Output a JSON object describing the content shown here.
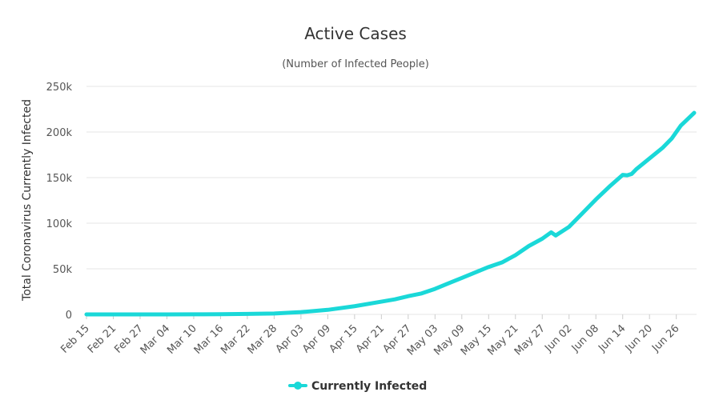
{
  "chart_data": {
    "type": "line",
    "title": "Active Cases",
    "subtitle": "(Number of Infected People)",
    "ylabel": "Total Coronavirus Currently Infected",
    "ylim": [
      0,
      250000
    ],
    "y_ticks": [
      {
        "value": 0,
        "label": "0"
      },
      {
        "value": 50000,
        "label": "50k"
      },
      {
        "value": 100000,
        "label": "100k"
      },
      {
        "value": 150000,
        "label": "150k"
      },
      {
        "value": 200000,
        "label": "200k"
      },
      {
        "value": 250000,
        "label": "250k"
      }
    ],
    "x_ticks": [
      "Feb 15",
      "Feb 21",
      "Feb 27",
      "Mar 04",
      "Mar 10",
      "Mar 16",
      "Mar 22",
      "Mar 28",
      "Apr 03",
      "Apr 09",
      "Apr 15",
      "Apr 21",
      "Apr 27",
      "May 03",
      "May 09",
      "May 15",
      "May 21",
      "May 27",
      "Jun 02",
      "Jun 08",
      "Jun 14",
      "Jun 20",
      "Jun 26"
    ],
    "grid": true,
    "legend_position": "bottom-center",
    "series": [
      {
        "name": "Currently Infected",
        "color": "#1ad8d8",
        "points": [
          {
            "x": "Feb 15",
            "y": 0
          },
          {
            "x": "Feb 21",
            "y": 0
          },
          {
            "x": "Feb 27",
            "y": 0
          },
          {
            "x": "Mar 04",
            "y": 50
          },
          {
            "x": "Mar 10",
            "y": 100
          },
          {
            "x": "Mar 16",
            "y": 200
          },
          {
            "x": "Mar 22",
            "y": 600
          },
          {
            "x": "Mar 28",
            "y": 1000
          },
          {
            "x": "Apr 03",
            "y": 2500
          },
          {
            "x": "Apr 09",
            "y": 5000
          },
          {
            "x": "Apr 15",
            "y": 9000
          },
          {
            "x": "Apr 21",
            "y": 14000
          },
          {
            "x": "Apr 24",
            "y": 16500
          },
          {
            "x": "Apr 27",
            "y": 20000
          },
          {
            "x": "Apr 30",
            "y": 23000
          },
          {
            "x": "May 03",
            "y": 28000
          },
          {
            "x": "May 06",
            "y": 34000
          },
          {
            "x": "May 09",
            "y": 40000
          },
          {
            "x": "May 12",
            "y": 46000
          },
          {
            "x": "May 15",
            "y": 52000
          },
          {
            "x": "May 18",
            "y": 57000
          },
          {
            "x": "May 21",
            "y": 65000
          },
          {
            "x": "May 24",
            "y": 75000
          },
          {
            "x": "May 27",
            "y": 83000
          },
          {
            "x": "May 29",
            "y": 90000
          },
          {
            "x": "May 30",
            "y": 86500
          },
          {
            "x": "Jun 02",
            "y": 96000
          },
          {
            "x": "Jun 05",
            "y": 111000
          },
          {
            "x": "Jun 08",
            "y": 126000
          },
          {
            "x": "Jun 11",
            "y": 140000
          },
          {
            "x": "Jun 14",
            "y": 153000
          },
          {
            "x": "Jun 15",
            "y": 152500
          },
          {
            "x": "Jun 16",
            "y": 154000
          },
          {
            "x": "Jun 17",
            "y": 159000
          },
          {
            "x": "Jun 20",
            "y": 171000
          },
          {
            "x": "Jun 23",
            "y": 183000
          },
          {
            "x": "Jun 25",
            "y": 193000
          },
          {
            "x": "Jun 27",
            "y": 207000
          },
          {
            "x": "Jun 30",
            "y": 221000
          }
        ]
      }
    ]
  }
}
